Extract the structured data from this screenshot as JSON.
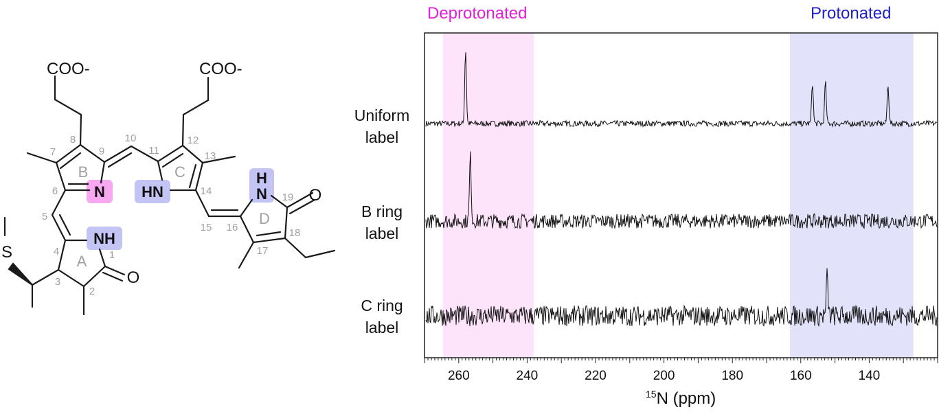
{
  "structure": {
    "carboxylates": [
      "COO-",
      "COO-"
    ],
    "atoms": {
      "ring_b_n": "N",
      "ring_c_n": "HN",
      "ring_a_n": "NH",
      "ring_d_n": "N",
      "ring_d_h": "H",
      "o1": "O",
      "o19": "O",
      "s": "S"
    },
    "ring_labels": [
      "A",
      "B",
      "C",
      "D"
    ],
    "position_numbers": [
      "1",
      "2",
      "3",
      "4",
      "5",
      "6",
      "7",
      "8",
      "9",
      "10",
      "11",
      "12",
      "13",
      "14",
      "15",
      "16",
      "17",
      "18",
      "19"
    ],
    "colors": {
      "deprotonated_highlight": "#f7a8f0",
      "protonated_highlight": "#c4c4f4",
      "numbers": "#a0a0a0"
    }
  },
  "chart_data": {
    "type": "line",
    "title_regions": [
      {
        "label": "Deprotonated",
        "range": [
          264.6,
          238.1
        ],
        "color": "#e020d8",
        "fill": "#fde4fb"
      },
      {
        "label": "Protonated",
        "range": [
          163.2,
          127.1
        ],
        "color": "#2020c8",
        "fill": "#e2e2fa"
      }
    ],
    "xlabel_sup": "15",
    "xlabel": "N (ppm)",
    "xlim": [
      270,
      120
    ],
    "x_reversed": true,
    "xticks": [
      260,
      240,
      220,
      200,
      180,
      160,
      140
    ],
    "yaxis": "none",
    "series": [
      {
        "name": "Uniform label",
        "lines": [
          "Uniform",
          "label"
        ],
        "peaks": [
          {
            "ppm": 258.0,
            "intensity": 1.0
          },
          {
            "ppm": 156.6,
            "intensity": 0.56
          },
          {
            "ppm": 152.8,
            "intensity": 0.56
          },
          {
            "ppm": 134.5,
            "intensity": 0.54
          }
        ],
        "noise": 0.04
      },
      {
        "name": "B ring label",
        "lines": [
          "B ring",
          "label"
        ],
        "peaks": [
          {
            "ppm": 256.6,
            "intensity": 0.9
          }
        ],
        "noise": 0.1
      },
      {
        "name": "C ring label",
        "lines": [
          "C ring",
          "label"
        ],
        "peaks": [
          {
            "ppm": 152.3,
            "intensity": 0.5
          }
        ],
        "noise": 0.13
      }
    ]
  }
}
